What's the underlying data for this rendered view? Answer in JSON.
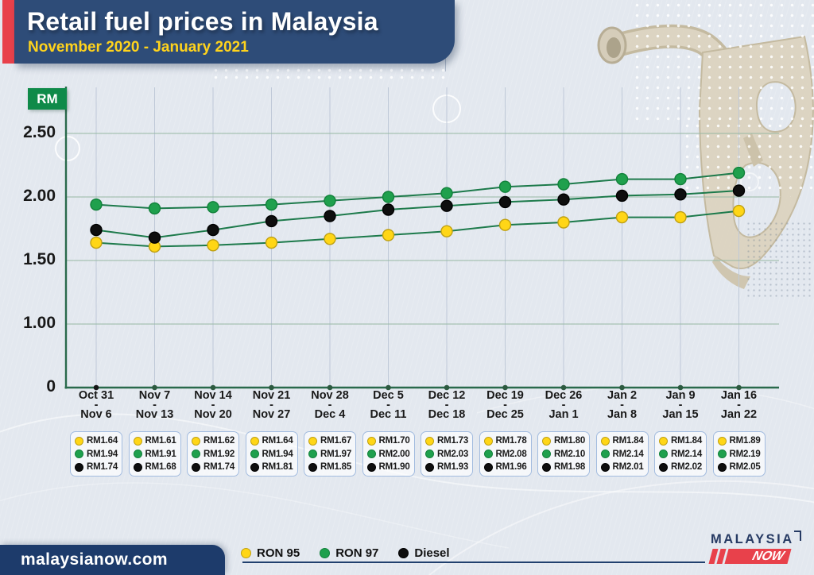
{
  "header": {
    "title": "Retail fuel prices in Malaysia",
    "subtitle": "November 2020 - January 2021"
  },
  "chart_data": {
    "type": "line",
    "title": "Retail fuel prices in Malaysia",
    "subtitle": "November 2020 - January 2021",
    "ylabel": "RM",
    "ylim": [
      0,
      2.5
    ],
    "grid": true,
    "legend_position": "bottom",
    "x_separator": "-",
    "yticks": [
      {
        "label": "2.50",
        "value": 2.5
      },
      {
        "label": "2.00",
        "value": 2.0
      },
      {
        "label": "1.50",
        "value": 1.5
      },
      {
        "label": "1.00",
        "value": 1.0
      },
      {
        "label": "0",
        "value": 0
      }
    ],
    "categories": [
      {
        "top": "Oct 31",
        "bottom": "Nov 6"
      },
      {
        "top": "Nov 7",
        "bottom": "Nov 13"
      },
      {
        "top": "Nov 14",
        "bottom": "Nov 20"
      },
      {
        "top": "Nov 21",
        "bottom": "Nov 27"
      },
      {
        "top": "Nov 28",
        "bottom": "Dec 4"
      },
      {
        "top": "Dec 5",
        "bottom": "Dec 11"
      },
      {
        "top": "Dec 12",
        "bottom": "Dec 18"
      },
      {
        "top": "Dec 19",
        "bottom": "Dec 25"
      },
      {
        "top": "Dec 26",
        "bottom": "Jan 1"
      },
      {
        "top": "Jan 2",
        "bottom": "Jan 8"
      },
      {
        "top": "Jan 9",
        "bottom": "Jan 15"
      },
      {
        "top": "Jan 16",
        "bottom": "Jan 22"
      }
    ],
    "series": [
      {
        "name": "RON 95",
        "color": "#ffd616",
        "edge": "#bfa013",
        "values": [
          1.64,
          1.61,
          1.62,
          1.64,
          1.67,
          1.7,
          1.73,
          1.78,
          1.8,
          1.84,
          1.84,
          1.89
        ]
      },
      {
        "name": "RON 97",
        "color": "#1fa04d",
        "edge": "#12813b",
        "values": [
          1.94,
          1.91,
          1.92,
          1.94,
          1.97,
          2.0,
          2.03,
          2.08,
          2.1,
          2.14,
          2.14,
          2.19
        ]
      },
      {
        "name": "Diesel",
        "color": "#0e0e0e",
        "edge": "#000000",
        "values": [
          1.74,
          1.68,
          1.74,
          1.81,
          1.85,
          1.9,
          1.93,
          1.96,
          1.98,
          2.01,
          2.02,
          2.05
        ]
      }
    ],
    "line_color": "#1d7a4b"
  },
  "value_boxes": [
    [
      "RM1.64",
      "RM1.94",
      "RM1.74"
    ],
    [
      "RM1.61",
      "RM1.91",
      "RM1.68"
    ],
    [
      "RM1.62",
      "RM1.92",
      "RM1.74"
    ],
    [
      "RM1.64",
      "RM1.94",
      "RM1.81"
    ],
    [
      "RM1.67",
      "RM1.97",
      "RM1.85"
    ],
    [
      "RM1.70",
      "RM2.00",
      "RM1.90"
    ],
    [
      "RM1.73",
      "RM2.03",
      "RM1.93"
    ],
    [
      "RM1.78",
      "RM2.08",
      "RM1.96"
    ],
    [
      "RM1.80",
      "RM2.10",
      "RM1.98"
    ],
    [
      "RM1.84",
      "RM2.14",
      "RM2.01"
    ],
    [
      "RM1.84",
      "RM2.14",
      "RM2.02"
    ],
    [
      "RM1.89",
      "RM2.19",
      "RM2.05"
    ]
  ],
  "legend": {
    "items": [
      {
        "label": "RON 95",
        "color": "#ffd616",
        "edge": "#bfa013"
      },
      {
        "label": "RON 97",
        "color": "#1fa04d",
        "edge": "#12813b"
      },
      {
        "label": "Diesel",
        "color": "#0e0e0e",
        "edge": "#000000"
      }
    ]
  },
  "footer": {
    "website": "malaysianow.com",
    "logo_top": "MALAYSIA",
    "logo_bottom": "NOW"
  },
  "colors": {
    "banner_navy": "#2e4c78",
    "accent_red": "#e8414b",
    "subtitle_yellow": "#ffd31c",
    "footer_navy": "#1d3b6b",
    "axis_badge_green": "#0f8a49",
    "underline_navy": "#21406e"
  }
}
